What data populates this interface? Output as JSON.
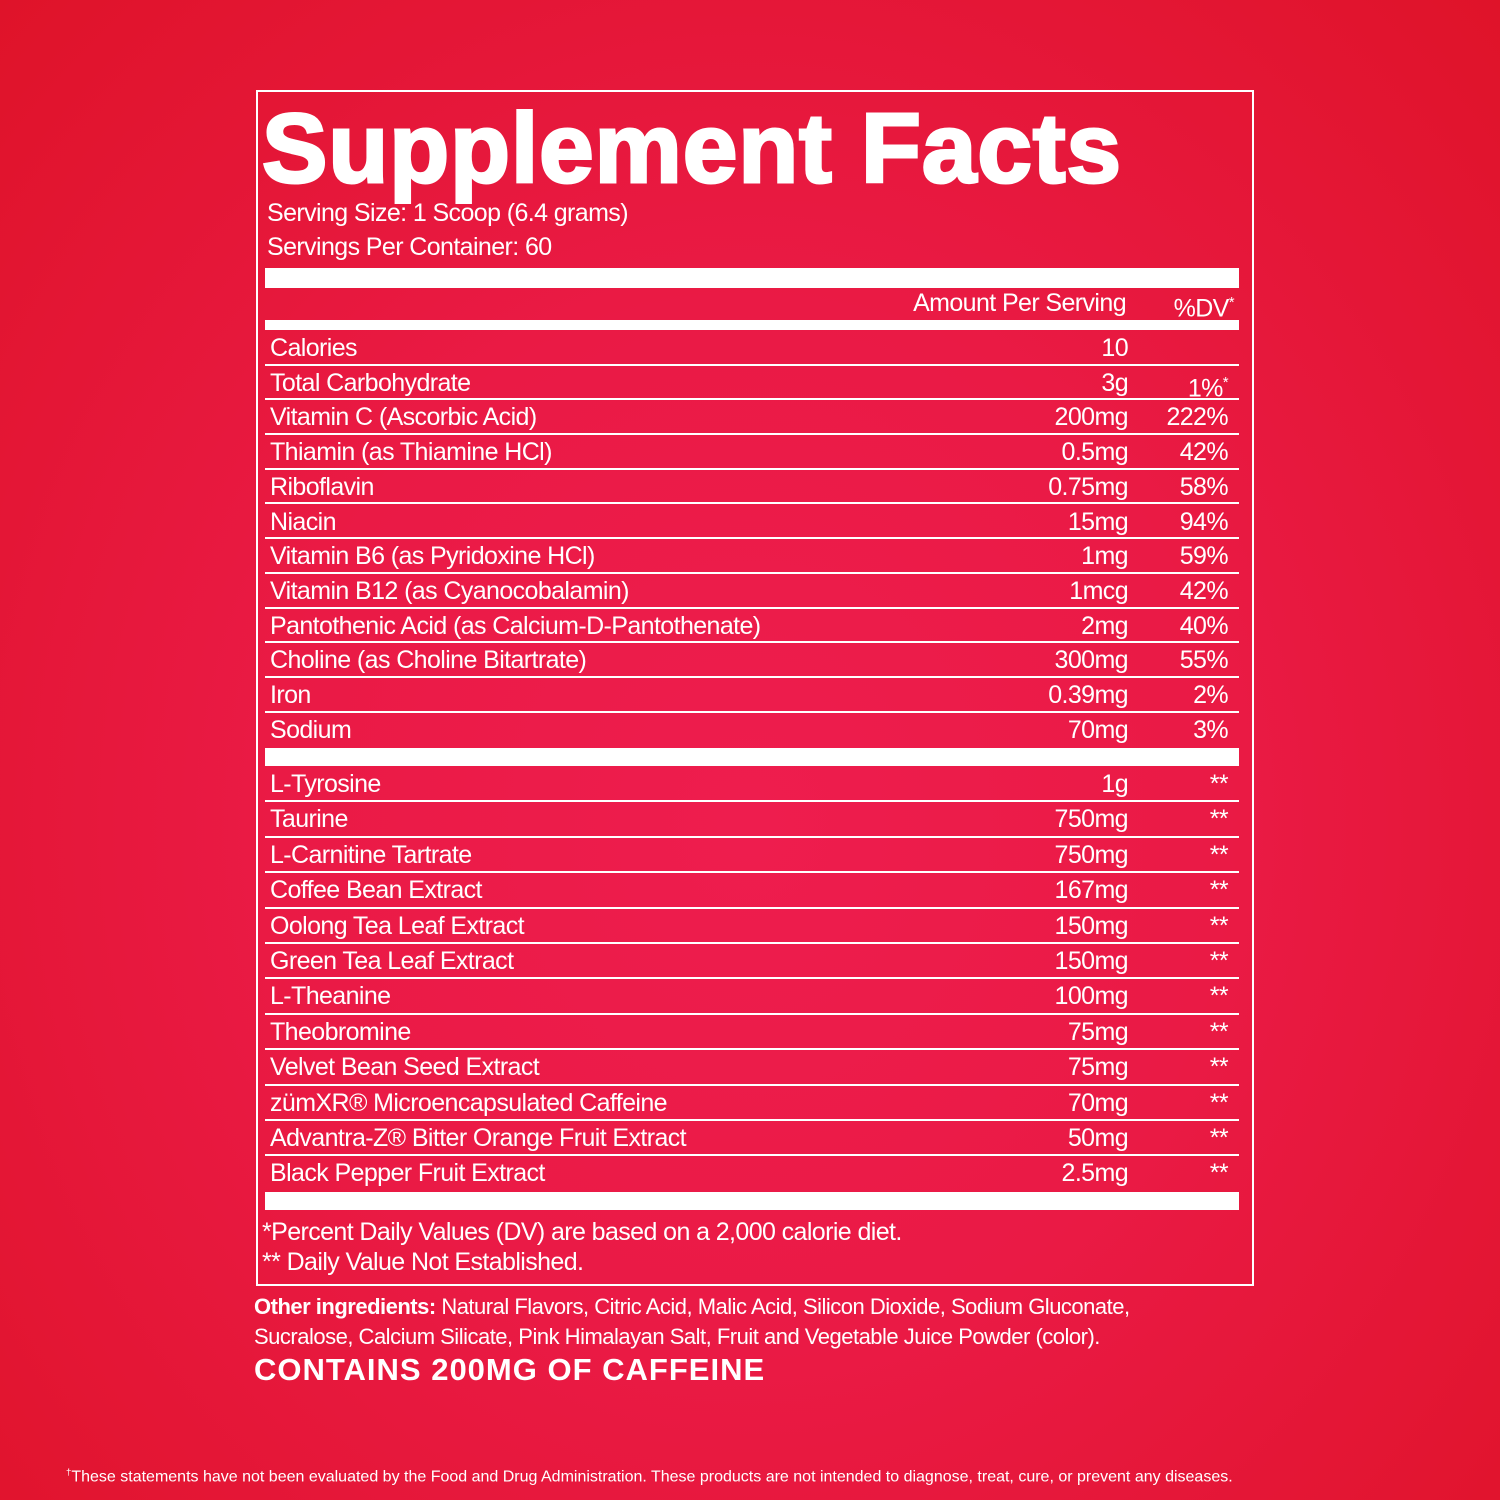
{
  "header": {
    "title": "Supplement Facts",
    "serving_size": "Serving Size: 1 Scoop (6.4 grams)",
    "servings_per_container": "Servings Per Container: 60"
  },
  "table": {
    "columns": [
      "Amount Per Serving",
      "%DV"
    ],
    "column_sup": "*",
    "rows": [
      {
        "name": "Calories",
        "amount": "10",
        "dv": ""
      },
      {
        "name": "Total Carbohydrate",
        "amount": "3g",
        "dv": "1%",
        "dv_sup": "*"
      },
      {
        "name": "Vitamin C (Ascorbic Acid)",
        "amount": "200mg",
        "dv": "222%"
      },
      {
        "name": "Thiamin (as Thiamine HCl)",
        "amount": "0.5mg",
        "dv": "42%"
      },
      {
        "name": "Riboflavin",
        "amount": "0.75mg",
        "dv": "58%"
      },
      {
        "name": "Niacin",
        "amount": "15mg",
        "dv": "94%"
      },
      {
        "name": "Vitamin B6 (as Pyridoxine HCl)",
        "amount": "1mg",
        "dv": "59%"
      },
      {
        "name": "Vitamin B12 (as Cyanocobalamin)",
        "amount": "1mcg",
        "dv": "42%"
      },
      {
        "name": "Pantothenic Acid (as Calcium-D-Pantothenate)",
        "amount": "2mg",
        "dv": "40%"
      },
      {
        "name": "Choline (as Choline Bitartrate)",
        "amount": "300mg",
        "dv": "55%"
      },
      {
        "name": "Iron",
        "amount": "0.39mg",
        "dv": "2%"
      },
      {
        "name": "Sodium",
        "amount": "70mg",
        "dv": "3%"
      }
    ],
    "rows2": [
      {
        "name": "L-Tyrosine",
        "amount": "1g",
        "dv": "**"
      },
      {
        "name": "Taurine",
        "amount": "750mg",
        "dv": "**"
      },
      {
        "name": "L-Carnitine Tartrate",
        "amount": "750mg",
        "dv": "**"
      },
      {
        "name": "Coffee Bean Extract",
        "amount": "167mg",
        "dv": "**"
      },
      {
        "name": "Oolong Tea Leaf Extract",
        "amount": "150mg",
        "dv": "**"
      },
      {
        "name": "Green Tea Leaf Extract",
        "amount": "150mg",
        "dv": "**"
      },
      {
        "name": "L-Theanine",
        "amount": "100mg",
        "dv": "**"
      },
      {
        "name": "Theobromine",
        "amount": "75mg",
        "dv": "**"
      },
      {
        "name": "Velvet Bean Seed Extract",
        "amount": "75mg",
        "dv": "**"
      },
      {
        "name": "zümXR® Microencapsulated Caffeine",
        "amount": "70mg",
        "dv": "**"
      },
      {
        "name": "Advantra-Z® Bitter Orange Fruit Extract",
        "amount": "50mg",
        "dv": "**"
      },
      {
        "name": "Black Pepper Fruit Extract",
        "amount": "2.5mg",
        "dv": "**"
      }
    ]
  },
  "footnotes": [
    "*Percent Daily Values (DV) are based on a 2,000 calorie diet.",
    "** Daily Value Not Established."
  ],
  "other_ingredients": {
    "label": "Other ingredients:",
    "text": "Natural Flavors, Citric Acid, Malic Acid, Silicon Dioxide, Sodium Gluconate, Sucralose, Calcium Silicate, Pink Himalayan Salt, Fruit and Vegetable Juice Powder (color)."
  },
  "caffeine_note": "CONTAINS 200MG OF CAFFEINE",
  "disclaimer": {
    "mark": "†",
    "text": "These statements have not been evaluated by the Food and Drug Administration. These products are not intended to diagnose, treat, cure, or prevent any diseases."
  }
}
